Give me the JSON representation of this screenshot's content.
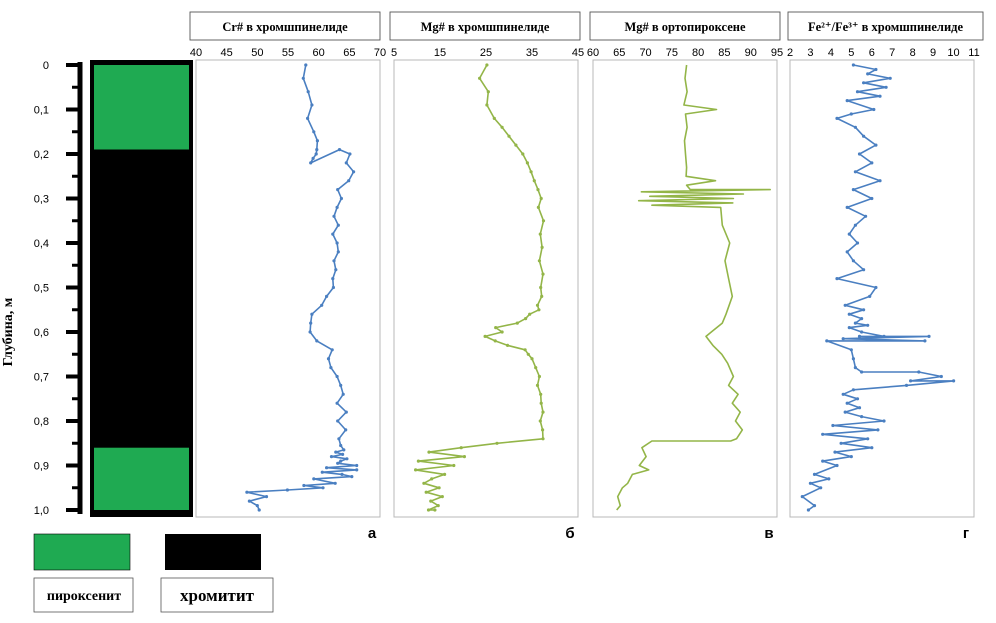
{
  "depth_axis": {
    "label": "Глубина, м",
    "ticks": [
      "0",
      "0,1",
      "0,2",
      "0,3",
      "0,4",
      "0,5",
      "0,6",
      "0,7",
      "0,8",
      "0,9",
      "1,0"
    ],
    "range": [
      0,
      1.0
    ]
  },
  "lithology": {
    "column": [
      {
        "rock": "pyroxenite",
        "from": 0.0,
        "to": 0.19
      },
      {
        "rock": "chromitite",
        "from": 0.19,
        "to": 0.86
      },
      {
        "rock": "pyroxenite",
        "from": 0.86,
        "to": 1.0
      }
    ],
    "colors": {
      "pyroxenite": "#1faa52",
      "chromitite": "#000000"
    },
    "legend": [
      {
        "key": "pyroxenite",
        "label": "пироксенит"
      },
      {
        "key": "chromitite",
        "label": "хромитит"
      }
    ]
  },
  "colors": {
    "blue": "#4a7fc1",
    "green": "#93b548",
    "frame": "#b8b8b8"
  },
  "chart_data": [
    {
      "type": "line",
      "panel": "а",
      "title": "Cr# в хромшпинелиде",
      "xlim": [
        40,
        70
      ],
      "xticks": [
        "40",
        "45",
        "50",
        "55",
        "60",
        "65",
        "70"
      ],
      "color": "#4a7fc1",
      "markers": true,
      "x": [
        57.9,
        57.5,
        58.3,
        58.9,
        58.2,
        59.2,
        59.8,
        59.7,
        59.6,
        59.1,
        58.7,
        63.4,
        65.1,
        64.5,
        65.7,
        64.9,
        63.1,
        63.7,
        63.0,
        62.5,
        63.2,
        62.3,
        63.0,
        63.2,
        62.5,
        62.8,
        62.3,
        62.4,
        61.3,
        60.5,
        58.9,
        58.7,
        58.6,
        59.7,
        62.2,
        61.6,
        62.0,
        63.0,
        63.6,
        64.0,
        63.0,
        64.5,
        63.1,
        64.4,
        63.3,
        63.6,
        64.1,
        62.8,
        63.9,
        62.1,
        64.6,
        63.6,
        63.1,
        66.2,
        61.3,
        66.2,
        60.6,
        63.8,
        65.4,
        59.2,
        62.7,
        57.6,
        60.7,
        54.9,
        48.3,
        51.5,
        48.7,
        50.0,
        50.3
      ],
      "y": [
        0.0,
        0.03,
        0.06,
        0.09,
        0.12,
        0.15,
        0.17,
        0.19,
        0.2,
        0.21,
        0.22,
        0.19,
        0.2,
        0.22,
        0.24,
        0.26,
        0.28,
        0.3,
        0.32,
        0.34,
        0.36,
        0.38,
        0.4,
        0.42,
        0.44,
        0.46,
        0.48,
        0.5,
        0.52,
        0.54,
        0.56,
        0.58,
        0.6,
        0.62,
        0.64,
        0.66,
        0.68,
        0.7,
        0.72,
        0.74,
        0.76,
        0.78,
        0.8,
        0.82,
        0.84,
        0.855,
        0.865,
        0.87,
        0.875,
        0.88,
        0.885,
        0.89,
        0.895,
        0.9,
        0.905,
        0.91,
        0.915,
        0.92,
        0.925,
        0.93,
        0.94,
        0.945,
        0.95,
        0.955,
        0.96,
        0.97,
        0.98,
        0.99,
        1.0
      ]
    },
    {
      "type": "line",
      "panel": "б",
      "title": "Mg# в хромшпинелиде",
      "xlim": [
        5,
        45
      ],
      "xticks": [
        "5",
        "15",
        "25",
        "35",
        "45"
      ],
      "color": "#93b548",
      "markers": true,
      "x": [
        25.2,
        23.6,
        25.5,
        25.2,
        26.8,
        28.5,
        30.0,
        31.5,
        33.0,
        34.0,
        34.8,
        35.5,
        36.3,
        37.0,
        36.4,
        37.5,
        36.8,
        37.2,
        36.6,
        37.4,
        36.9,
        37.1,
        36.2,
        36.5,
        34.5,
        33.6,
        31.8,
        27.1,
        28.5,
        24.8,
        27.0,
        29.7,
        33.5,
        34.2,
        35.0,
        35.8,
        36.6,
        36.2,
        36.9,
        37.0,
        37.4,
        36.8,
        37.3,
        37.4,
        27.4,
        19.6,
        12.6,
        20.3,
        10.3,
        18.0,
        9.7,
        16.0,
        13.2,
        11.5,
        14.8,
        12.0,
        15.5,
        13.0,
        14.6,
        12.5,
        13.9
      ],
      "y": [
        0.0,
        0.03,
        0.06,
        0.09,
        0.12,
        0.14,
        0.16,
        0.18,
        0.2,
        0.22,
        0.24,
        0.26,
        0.28,
        0.3,
        0.32,
        0.35,
        0.38,
        0.41,
        0.44,
        0.47,
        0.5,
        0.52,
        0.54,
        0.55,
        0.56,
        0.57,
        0.58,
        0.59,
        0.6,
        0.61,
        0.62,
        0.63,
        0.64,
        0.65,
        0.66,
        0.68,
        0.7,
        0.72,
        0.74,
        0.76,
        0.78,
        0.8,
        0.82,
        0.84,
        0.85,
        0.86,
        0.87,
        0.88,
        0.89,
        0.9,
        0.91,
        0.92,
        0.93,
        0.94,
        0.95,
        0.96,
        0.97,
        0.98,
        0.99,
        1.0,
        1.0
      ]
    },
    {
      "type": "line",
      "panel": "в",
      "title": "Mg# в ортопироксене",
      "xlim": [
        60,
        95
      ],
      "xticks": [
        "60",
        "65",
        "70",
        "75",
        "80",
        "85",
        "90",
        "95"
      ],
      "color": "#93b548",
      "markers": false,
      "x": [
        77.8,
        77.5,
        77.9,
        77.3,
        83.5,
        77.6,
        77.9,
        77.4,
        77.6,
        77.8,
        77.7,
        83.3,
        77.8,
        78.5,
        93.7,
        69.2,
        88.6,
        70.8,
        86.7,
        68.7,
        86.6,
        71.2,
        84.3,
        84.6,
        86.0,
        85.1,
        85.8,
        86.5,
        85.3,
        84.6,
        82.5,
        81.5,
        82.8,
        84.5,
        85.6,
        86.7,
        85.8,
        87.6,
        86.5,
        88.0,
        87.1,
        88.4,
        87.3,
        86.2,
        71.2,
        69.3,
        70.1,
        68.8,
        70.6,
        67.5,
        66.6,
        65.6,
        64.7,
        65.2,
        64.5
      ],
      "y": [
        0.0,
        0.03,
        0.06,
        0.09,
        0.1,
        0.11,
        0.14,
        0.17,
        0.2,
        0.23,
        0.25,
        0.26,
        0.27,
        0.28,
        0.28,
        0.285,
        0.29,
        0.295,
        0.3,
        0.305,
        0.31,
        0.315,
        0.32,
        0.36,
        0.4,
        0.44,
        0.48,
        0.52,
        0.56,
        0.58,
        0.6,
        0.61,
        0.63,
        0.65,
        0.67,
        0.7,
        0.72,
        0.74,
        0.76,
        0.78,
        0.8,
        0.82,
        0.84,
        0.845,
        0.845,
        0.86,
        0.88,
        0.9,
        0.91,
        0.92,
        0.94,
        0.95,
        0.97,
        0.99,
        1.0
      ]
    },
    {
      "type": "line",
      "panel": "г",
      "title": "Fe²⁺/Fe³⁺ в хромшпинелиде",
      "xlim": [
        2,
        11
      ],
      "xticks": [
        "2",
        "3",
        "4",
        "5",
        "6",
        "7",
        "8",
        "9",
        "10",
        "11"
      ],
      "color": "#4a7fc1",
      "markers": true,
      "x": [
        5.1,
        6.2,
        5.8,
        6.9,
        5.6,
        6.7,
        5.3,
        6.4,
        4.8,
        6.1,
        5.0,
        4.3,
        5.2,
        5.6,
        6.2,
        5.4,
        6.0,
        5.2,
        6.4,
        5.1,
        6.0,
        4.8,
        5.7,
        5.2,
        4.9,
        5.3,
        4.8,
        5.1,
        5.6,
        4.3,
        6.2,
        5.9,
        4.7,
        5.6,
        4.9,
        5.5,
        5.2,
        5.8,
        4.9,
        5.5,
        6.6,
        5.4,
        8.8,
        4.6,
        8.6,
        3.8,
        5.0,
        5.1,
        5.2,
        5.5,
        8.3,
        9.4,
        7.9,
        10.0,
        7.7,
        5.1,
        4.6,
        5.3,
        4.8,
        5.4,
        4.7,
        5.5,
        6.6,
        4.1,
        6.3,
        3.6,
        5.8,
        4.5,
        6.0,
        4.2,
        5.0,
        3.6,
        4.3,
        3.2,
        3.9,
        3.0,
        3.5,
        2.6,
        3.2,
        2.9
      ],
      "y": [
        0.0,
        0.01,
        0.02,
        0.03,
        0.04,
        0.05,
        0.06,
        0.07,
        0.08,
        0.1,
        0.11,
        0.12,
        0.14,
        0.16,
        0.18,
        0.2,
        0.22,
        0.24,
        0.26,
        0.28,
        0.3,
        0.32,
        0.34,
        0.36,
        0.38,
        0.4,
        0.42,
        0.44,
        0.46,
        0.48,
        0.5,
        0.52,
        0.54,
        0.55,
        0.56,
        0.57,
        0.58,
        0.585,
        0.59,
        0.6,
        0.61,
        0.61,
        0.61,
        0.615,
        0.62,
        0.62,
        0.64,
        0.66,
        0.68,
        0.69,
        0.69,
        0.7,
        0.71,
        0.71,
        0.72,
        0.73,
        0.74,
        0.75,
        0.76,
        0.77,
        0.78,
        0.79,
        0.8,
        0.81,
        0.82,
        0.83,
        0.84,
        0.85,
        0.86,
        0.87,
        0.88,
        0.89,
        0.9,
        0.92,
        0.93,
        0.94,
        0.95,
        0.97,
        0.99,
        1.0
      ]
    }
  ]
}
